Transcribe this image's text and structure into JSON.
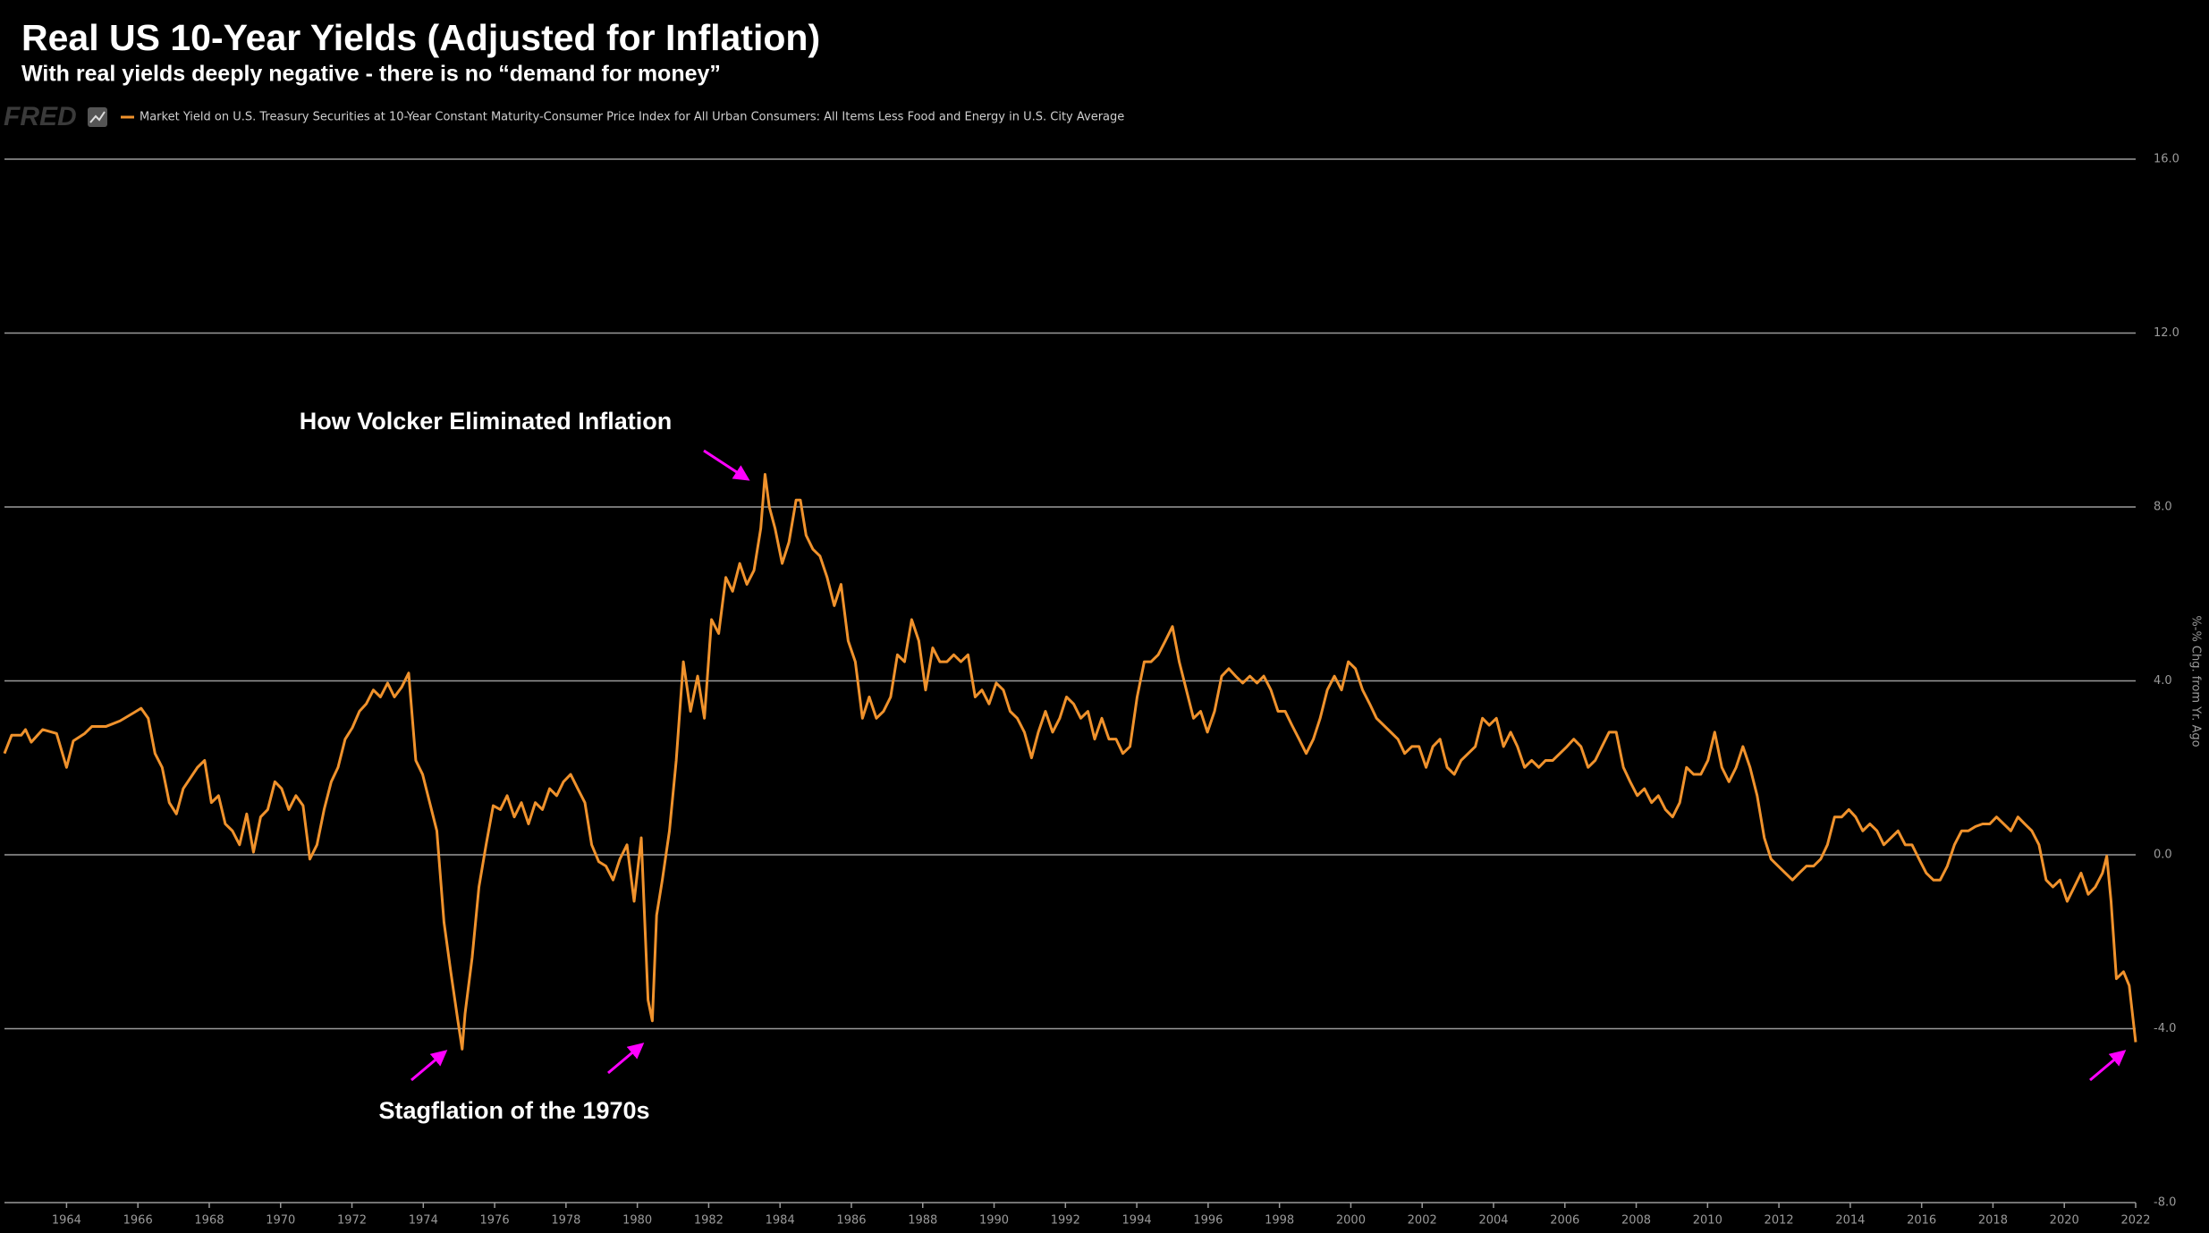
{
  "chart_data": {
    "type": "line",
    "title": "Real US 10-Year Yields (Adjusted for Inflation)",
    "subtitle": "With real yields deeply negative - there is no “demand for money”",
    "source_logo": "FRED",
    "y_axis_label": "%-% Chg. from Yr. Ago",
    "annotations": [
      "How Volcker Eliminated Inflation",
      "Stagflation of the 1970s"
    ],
    "x": [
      1962.26,
      1962.46,
      1962.73,
      1962.85,
      1963.01,
      1963.33,
      1963.72,
      1964.0,
      1964.19,
      1964.51,
      1964.71,
      1965.1,
      1965.5,
      1965.89,
      1966.09,
      1966.29,
      1966.48,
      1966.68,
      1966.88,
      1967.08,
      1967.27,
      1967.67,
      1967.87,
      1968.06,
      1968.26,
      1968.45,
      1968.65,
      1968.85,
      1969.05,
      1969.24,
      1969.44,
      1969.64,
      1969.84,
      1970.03,
      1970.23,
      1970.43,
      1970.63,
      1970.82,
      1971.02,
      1971.22,
      1971.42,
      1971.61,
      1971.81,
      1972.01,
      1972.21,
      1972.4,
      1972.6,
      1972.8,
      1973.0,
      1973.19,
      1973.39,
      1973.59,
      1973.79,
      1973.98,
      1974.18,
      1974.38,
      1974.58,
      1974.77,
      1974.97,
      1975.09,
      1975.17,
      1975.37,
      1975.56,
      1975.76,
      1975.96,
      1976.16,
      1976.35,
      1976.55,
      1976.75,
      1976.95,
      1977.14,
      1977.34,
      1977.54,
      1977.74,
      1977.93,
      1978.13,
      1978.33,
      1978.53,
      1978.72,
      1978.92,
      1979.12,
      1979.32,
      1979.51,
      1979.71,
      1979.91,
      1980.11,
      1980.3,
      1980.42,
      1980.54,
      1980.7,
      1980.9,
      1981.09,
      1981.29,
      1981.49,
      1981.69,
      1981.88,
      1982.08,
      1982.28,
      1982.48,
      1982.67,
      1982.87,
      1983.07,
      1983.27,
      1983.46,
      1983.58,
      1983.7,
      1983.86,
      1984.06,
      1984.25,
      1984.45,
      1984.57,
      1984.73,
      1984.92,
      1985.12,
      1985.32,
      1985.52,
      1985.71,
      1985.91,
      1986.11,
      1986.31,
      1986.5,
      1986.7,
      1986.9,
      1987.1,
      1987.29,
      1987.49,
      1987.69,
      1987.89,
      1988.08,
      1988.28,
      1988.48,
      1988.68,
      1988.87,
      1989.07,
      1989.27,
      1989.47,
      1989.66,
      1989.86,
      1990.06,
      1990.26,
      1990.45,
      1990.65,
      1990.85,
      1991.05,
      1991.24,
      1991.44,
      1991.64,
      1991.84,
      1992.03,
      1992.23,
      1992.43,
      1992.63,
      1992.82,
      1993.02,
      1993.22,
      1993.42,
      1993.61,
      1993.81,
      1994.01,
      1994.21,
      1994.4,
      1994.6,
      1994.8,
      1995.0,
      1995.19,
      1995.39,
      1995.59,
      1995.79,
      1995.98,
      1996.18,
      1996.38,
      1996.58,
      1996.77,
      1996.97,
      1997.17,
      1997.37,
      1997.56,
      1997.76,
      1997.96,
      1998.16,
      1998.35,
      1998.55,
      1998.75,
      1998.95,
      1999.14,
      1999.34,
      1999.54,
      1999.74,
      1999.93,
      2000.13,
      2000.33,
      2000.53,
      2000.72,
      2000.92,
      2001.12,
      2001.32,
      2001.51,
      2001.71,
      2001.91,
      2002.11,
      2002.3,
      2002.5,
      2002.7,
      2002.9,
      2003.09,
      2003.29,
      2003.49,
      2003.69,
      2003.88,
      2004.08,
      2004.28,
      2004.48,
      2004.67,
      2004.87,
      2005.07,
      2005.27,
      2005.46,
      2005.66,
      2005.86,
      2006.06,
      2006.25,
      2006.45,
      2006.65,
      2006.85,
      2007.04,
      2007.24,
      2007.44,
      2007.64,
      2007.83,
      2008.03,
      2008.23,
      2008.43,
      2008.62,
      2008.82,
      2009.02,
      2009.22,
      2009.41,
      2009.61,
      2009.81,
      2010.01,
      2010.2,
      2010.4,
      2010.6,
      2010.8,
      2010.99,
      2011.19,
      2011.39,
      2011.59,
      2011.78,
      2011.98,
      2012.18,
      2012.38,
      2012.57,
      2012.77,
      2012.97,
      2013.17,
      2013.36,
      2013.56,
      2013.76,
      2013.96,
      2014.15,
      2014.35,
      2014.55,
      2014.75,
      2014.94,
      2015.14,
      2015.34,
      2015.54,
      2015.73,
      2015.93,
      2016.13,
      2016.33,
      2016.52,
      2016.72,
      2016.92,
      2017.12,
      2017.31,
      2017.51,
      2017.71,
      2017.91,
      2018.1,
      2018.3,
      2018.5,
      2018.7,
      2018.89,
      2019.09,
      2019.29,
      2019.49,
      2019.68,
      2019.88,
      2020.08,
      2020.28,
      2020.47,
      2020.67,
      2020.87,
      2021.07,
      2021.19,
      2021.31,
      2021.46,
      2021.66,
      2021.82,
      2022.0
    ],
    "series": [
      {
        "name": "Market Yield on U.S. Treasury Securities at 10-Year Constant Maturity-Consumer Price Index for All Urban Consumers: All Items Less Food and Energy in U.S. City Average",
        "color": "#f0922c",
        "values": [
          2.33,
          2.75,
          2.75,
          2.88,
          2.59,
          2.88,
          2.79,
          2.01,
          2.62,
          2.79,
          2.95,
          2.95,
          3.08,
          3.27,
          3.37,
          3.14,
          2.33,
          2.01,
          1.2,
          0.94,
          1.52,
          2.01,
          2.17,
          1.2,
          1.36,
          0.71,
          0.55,
          0.23,
          0.94,
          0.06,
          0.87,
          1.04,
          1.68,
          1.52,
          1.04,
          1.36,
          1.13,
          -0.1,
          0.23,
          1.04,
          1.68,
          2.01,
          2.66,
          2.92,
          3.3,
          3.47,
          3.79,
          3.63,
          3.95,
          3.63,
          3.85,
          4.18,
          2.17,
          1.85,
          1.2,
          0.55,
          -1.55,
          -2.69,
          -3.82,
          -4.47,
          -3.66,
          -2.36,
          -0.74,
          0.23,
          1.13,
          1.04,
          1.36,
          0.87,
          1.2,
          0.71,
          1.2,
          1.04,
          1.52,
          1.36,
          1.68,
          1.85,
          1.52,
          1.2,
          0.23,
          -0.16,
          -0.26,
          -0.58,
          -0.1,
          0.23,
          -1.07,
          0.39,
          -3.34,
          -3.82,
          -1.39,
          -0.58,
          0.55,
          2.17,
          4.44,
          3.3,
          4.11,
          3.14,
          5.41,
          5.09,
          6.38,
          6.06,
          6.7,
          6.22,
          6.54,
          7.51,
          8.75,
          8.0,
          7.51,
          6.7,
          7.19,
          8.16,
          8.16,
          7.35,
          7.03,
          6.87,
          6.38,
          5.73,
          6.22,
          4.92,
          4.44,
          3.14,
          3.63,
          3.14,
          3.3,
          3.63,
          4.6,
          4.44,
          5.41,
          4.92,
          3.79,
          4.76,
          4.44,
          4.44,
          4.6,
          4.44,
          4.6,
          3.63,
          3.79,
          3.47,
          3.95,
          3.79,
          3.3,
          3.14,
          2.82,
          2.23,
          2.82,
          3.3,
          2.82,
          3.14,
          3.63,
          3.47,
          3.14,
          3.3,
          2.66,
          3.14,
          2.66,
          2.66,
          2.33,
          2.49,
          3.63,
          4.44,
          4.44,
          4.6,
          4.92,
          5.25,
          4.44,
          3.79,
          3.14,
          3.3,
          2.82,
          3.3,
          4.11,
          4.28,
          4.11,
          3.95,
          4.11,
          3.95,
          4.11,
          3.79,
          3.3,
          3.3,
          2.98,
          2.66,
          2.33,
          2.66,
          3.14,
          3.79,
          4.11,
          3.79,
          4.44,
          4.28,
          3.79,
          3.47,
          3.14,
          2.98,
          2.82,
          2.66,
          2.33,
          2.49,
          2.49,
          2.01,
          2.49,
          2.66,
          2.01,
          1.85,
          2.17,
          2.33,
          2.49,
          3.14,
          2.98,
          3.14,
          2.49,
          2.82,
          2.49,
          2.01,
          2.17,
          2.01,
          2.17,
          2.17,
          2.33,
          2.49,
          2.66,
          2.49,
          2.01,
          2.17,
          2.49,
          2.82,
          2.82,
          2.01,
          1.68,
          1.36,
          1.52,
          1.2,
          1.36,
          1.04,
          0.87,
          1.2,
          2.01,
          1.85,
          1.85,
          2.17,
          2.82,
          2.01,
          1.68,
          2.01,
          2.49,
          2.01,
          1.36,
          0.39,
          -0.1,
          -0.26,
          -0.42,
          -0.58,
          -0.42,
          -0.26,
          -0.26,
          -0.1,
          0.23,
          0.87,
          0.87,
          1.04,
          0.87,
          0.55,
          0.71,
          0.55,
          0.23,
          0.39,
          0.55,
          0.23,
          0.23,
          -0.1,
          -0.42,
          -0.58,
          -0.58,
          -0.26,
          0.23,
          0.55,
          0.55,
          0.65,
          0.71,
          0.71,
          0.87,
          0.71,
          0.55,
          0.87,
          0.71,
          0.55,
          0.23,
          -0.58,
          -0.74,
          -0.58,
          -1.07,
          -0.74,
          -0.42,
          -0.91,
          -0.74,
          -0.42,
          -0.03,
          -1.07,
          -2.85,
          -2.69,
          -3.01,
          -4.31
        ]
      }
    ],
    "xlim": [
      1962.26,
      2022
    ],
    "xticks": [
      1964,
      1966,
      1968,
      1970,
      1972,
      1974,
      1976,
      1978,
      1980,
      1982,
      1984,
      1986,
      1988,
      1990,
      1992,
      1994,
      1996,
      1998,
      2000,
      2002,
      2004,
      2006,
      2008,
      2010,
      2012,
      2014,
      2016,
      2018,
      2020,
      2022
    ],
    "ylim": [
      -8,
      16
    ],
    "yticks": [
      {
        "value": -8,
        "label": "-8.0"
      },
      {
        "value": -4,
        "label": "-4.0"
      },
      {
        "value": 0,
        "label": "0.0"
      },
      {
        "value": 4,
        "label": "4.0"
      },
      {
        "value": 8,
        "label": "8.0"
      },
      {
        "value": 12,
        "label": "12.0"
      },
      {
        "value": 16,
        "label": "16.0"
      }
    ],
    "grid": true
  }
}
